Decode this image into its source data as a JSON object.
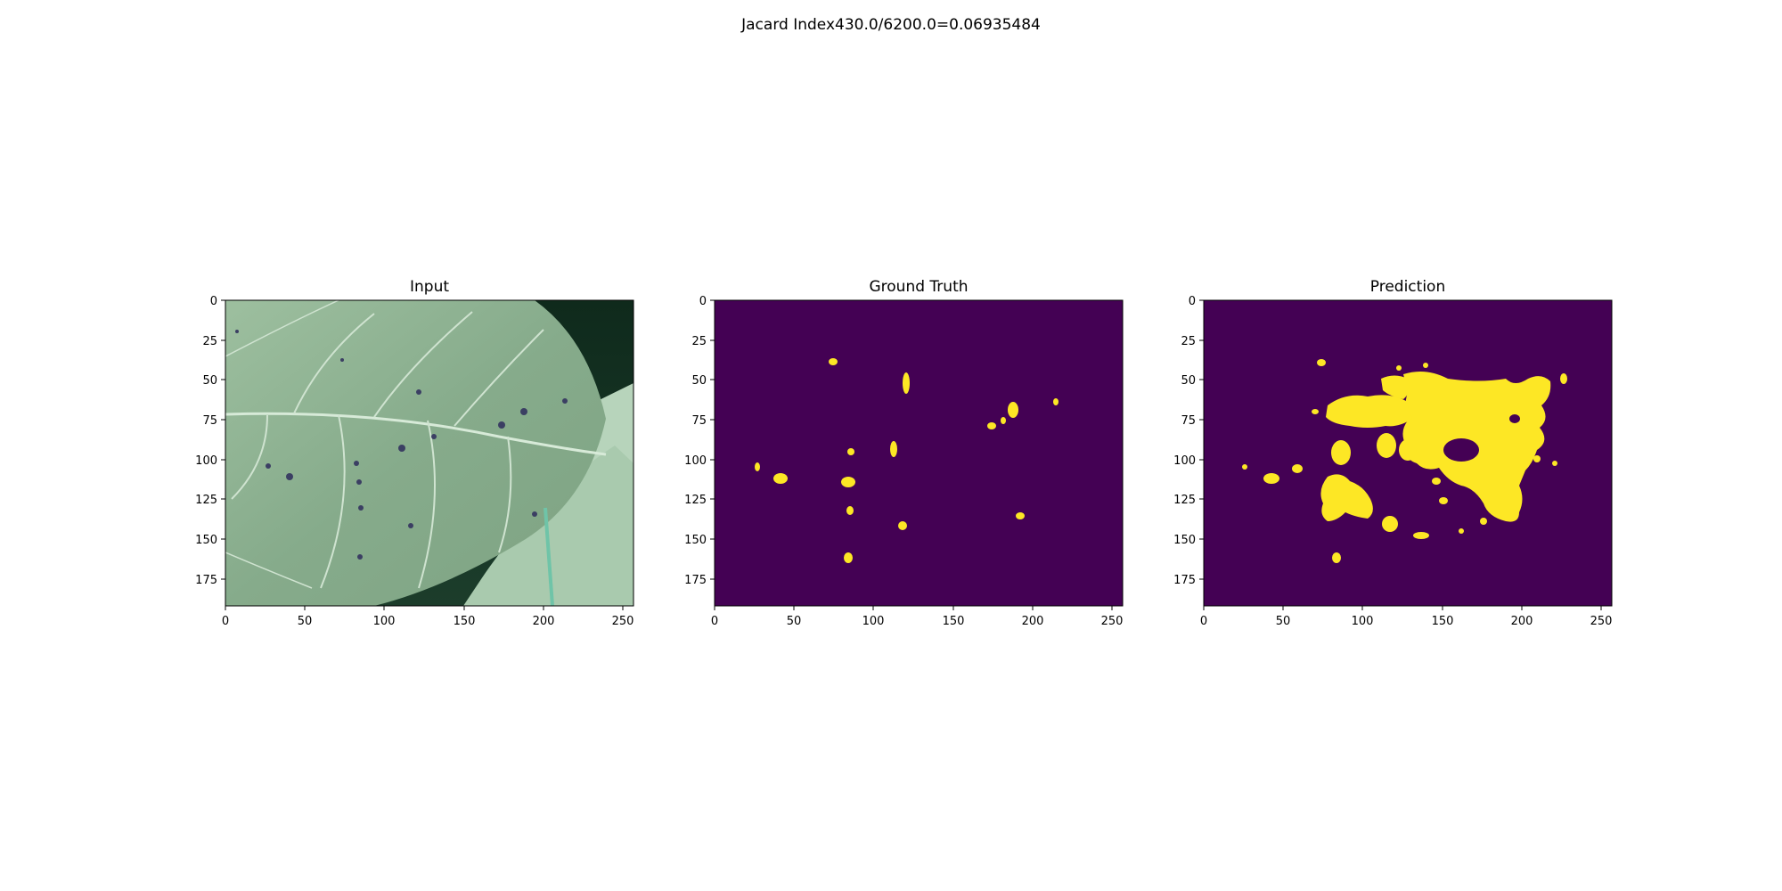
{
  "figure": {
    "suptitle": "Jacard Index430.0/6200.0=0.06935484"
  },
  "panels": [
    {
      "title": "Input",
      "kind": "photo",
      "content": "leaf-photo",
      "xticks": [
        "0",
        "50",
        "100",
        "150",
        "200",
        "250"
      ],
      "yticks": [
        "0",
        "25",
        "50",
        "75",
        "100",
        "125",
        "150",
        "175"
      ]
    },
    {
      "title": "Ground Truth",
      "kind": "mask",
      "content": "ground-truth-mask",
      "xticks": [
        "0",
        "50",
        "100",
        "150",
        "200",
        "250"
      ],
      "yticks": [
        "0",
        "25",
        "50",
        "75",
        "100",
        "125",
        "150",
        "175"
      ]
    },
    {
      "title": "Prediction",
      "kind": "mask",
      "content": "prediction-mask",
      "xticks": [
        "0",
        "50",
        "100",
        "150",
        "200",
        "250"
      ],
      "yticks": [
        "0",
        "25",
        "50",
        "75",
        "100",
        "125",
        "150",
        "175"
      ]
    }
  ],
  "colors": {
    "mask_background": "#440154",
    "mask_foreground": "#fde725",
    "leaf_light": "#a9c9ac",
    "leaf_mid": "#7fa585",
    "leaf_dark": "#1d3a2a",
    "vein": "#d7ead8",
    "lesion": "#3b3f63",
    "secondary_leaf": "#b8d6bd"
  }
}
